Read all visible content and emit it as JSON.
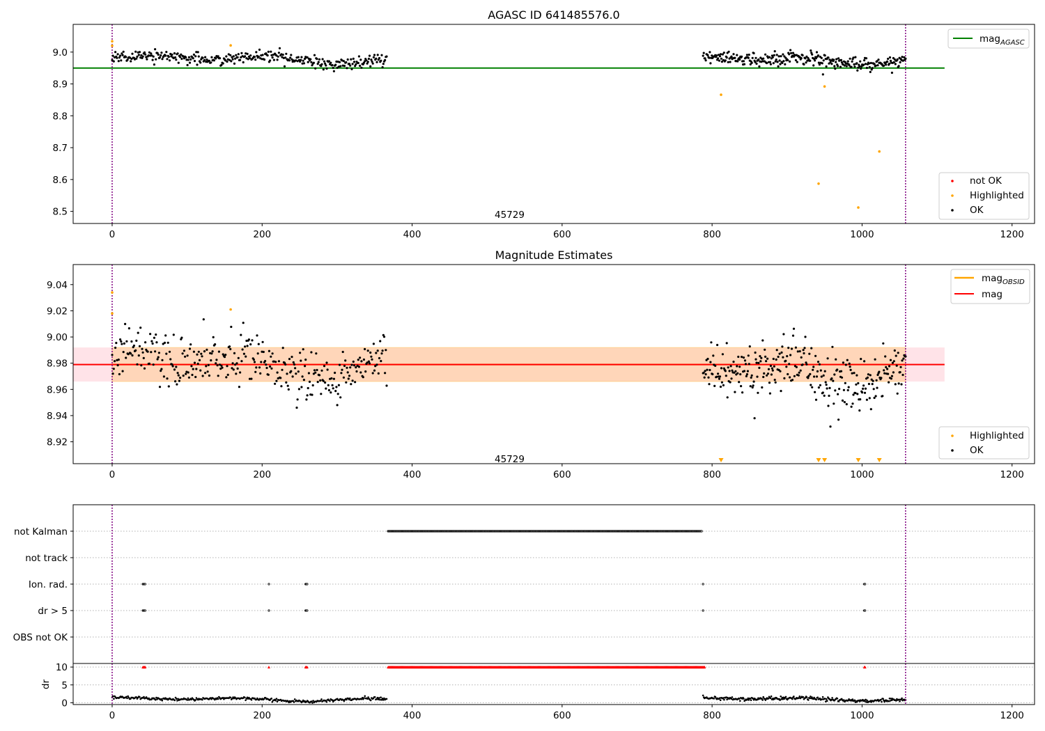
{
  "chart_data": [
    {
      "type": "scatter",
      "title": "AGASC ID 641485576.0",
      "xlim": [
        -52,
        1230
      ],
      "ylim": [
        8.462,
        9.087
      ],
      "xticks": [
        0,
        200,
        400,
        600,
        800,
        1000,
        1200
      ],
      "yticks": [
        8.5,
        8.6,
        8.7,
        8.8,
        8.9,
        9.0
      ],
      "ytick_labels": [
        "8.5",
        "8.6",
        "8.7",
        "8.8",
        "8.9",
        "9.0"
      ],
      "annotation": {
        "text": "45729",
        "x": 530,
        "y": 8.49
      },
      "vlines": [
        0,
        1058
      ],
      "hline": {
        "name": "mag_AGASC",
        "value": 8.95,
        "xmin": -52,
        "xmax": 1110,
        "color": "#008000"
      },
      "segments": [
        {
          "x0": 0,
          "x1": 366,
          "n": 340,
          "base": 8.978,
          "amp": 0.015,
          "noise": 0.009
        },
        {
          "x0": 788,
          "x1": 1058,
          "n": 300,
          "base": 8.978,
          "amp": 0.016,
          "noise": 0.01
        }
      ],
      "highlighted": [
        [
          0,
          9.034
        ],
        [
          0,
          9.02
        ],
        [
          158,
          9.021
        ],
        [
          812,
          8.866
        ],
        [
          950,
          8.892
        ],
        [
          942,
          8.587
        ],
        [
          995,
          8.512
        ],
        [
          1023,
          8.688
        ]
      ],
      "legend_lines": [
        "mag"
      ],
      "legend_lines_sub": [
        "AGASC"
      ],
      "legend_points": [
        "not OK",
        "Highlighted",
        "OK"
      ],
      "colors": {
        "ok": "#000000",
        "highlighted": "#ffa500",
        "not_ok": "#ff0000",
        "mag_agasc": "#008000"
      }
    },
    {
      "type": "scatter",
      "title": "Magnitude Estimates",
      "xlim": [
        -52,
        1230
      ],
      "ylim": [
        8.9033,
        9.0553
      ],
      "xticks": [
        0,
        200,
        400,
        600,
        800,
        1000,
        1200
      ],
      "yticks": [
        8.92,
        8.94,
        8.96,
        8.98,
        9.0,
        9.02,
        9.04
      ],
      "ytick_labels": [
        "8.92",
        "8.94",
        "8.96",
        "8.98",
        "9.00",
        "9.02",
        "9.04"
      ],
      "annotation": {
        "text": "45729",
        "x": 530,
        "y": 8.907
      },
      "vlines": [
        0,
        1058
      ],
      "mag": {
        "value": 8.979,
        "band": [
          8.966,
          8.992
        ],
        "xmin": -52,
        "xmax": 1110,
        "color": "#ff0000"
      },
      "mag_obsid": {
        "value": 8.979,
        "band": [
          8.966,
          8.992
        ],
        "xmin": 0,
        "xmax": 1058,
        "color": "#ffa500"
      },
      "segments": [
        {
          "x0": 0,
          "x1": 366,
          "n": 340,
          "base": 8.979,
          "amp": 0.012,
          "noise": 0.01
        },
        {
          "x0": 788,
          "x1": 1058,
          "n": 300,
          "base": 8.976,
          "amp": 0.013,
          "noise": 0.011
        }
      ],
      "highlighted": [
        [
          0,
          9.034
        ],
        [
          0,
          9.018
        ],
        [
          158,
          9.021
        ]
      ],
      "offscale_markers": [
        812,
        942,
        950,
        995,
        1023
      ],
      "legend_lines": [
        "mag",
        "mag"
      ],
      "legend_lines_sub": [
        "OBSID",
        ""
      ],
      "legend_points": [
        "Highlighted",
        "OK"
      ],
      "colors": {
        "ok": "#000000",
        "highlighted": "#ffa500",
        "mag": "#ff0000",
        "mag_obsid": "#ffa500",
        "band": "#ffc0cb"
      }
    },
    {
      "type": "scatter",
      "xlim": [
        -52,
        1230
      ],
      "xticks": [
        0,
        200,
        400,
        600,
        800,
        1000,
        1200
      ],
      "vlines": [
        0,
        1058
      ],
      "flag_rows": [
        "not Kalman",
        "not track",
        "Ion. rad.",
        "dr > 5",
        "OBS not OK"
      ],
      "flags": {
        "not Kalman": [
          [
            368,
            786
          ]
        ],
        "not track": [],
        "Ion. rad.": [
          [
            41,
            44
          ],
          [
            209,
            209
          ],
          [
            258,
            260
          ],
          [
            788,
            788
          ],
          [
            1003,
            1004
          ]
        ],
        "dr > 5": [
          [
            41,
            44
          ],
          [
            209,
            209
          ],
          [
            258,
            260
          ],
          [
            788,
            788
          ],
          [
            1003,
            1004
          ]
        ],
        "OBS not OK": []
      },
      "dr": {
        "ylabel": "dr",
        "ylim": [
          -0.5,
          11
        ],
        "yticks": [
          0,
          5,
          10
        ],
        "ytick_labels": [
          "0",
          "5",
          "10"
        ],
        "saturated_value": 10,
        "saturated": [
          [
            41,
            44
          ],
          [
            209,
            209
          ],
          [
            258,
            260
          ],
          [
            368,
            790
          ],
          [
            1003,
            1004
          ]
        ],
        "segments": [
          {
            "x0": 0,
            "x1": 366,
            "n": 330,
            "base": 1.0,
            "amp": 0.6,
            "noise": 0.2
          },
          {
            "x0": 788,
            "x1": 1058,
            "n": 280,
            "base": 1.1,
            "amp": 0.6,
            "noise": 0.25
          }
        ]
      },
      "colors": {
        "ok": "#000000",
        "saturated": "#ff0000"
      }
    }
  ]
}
